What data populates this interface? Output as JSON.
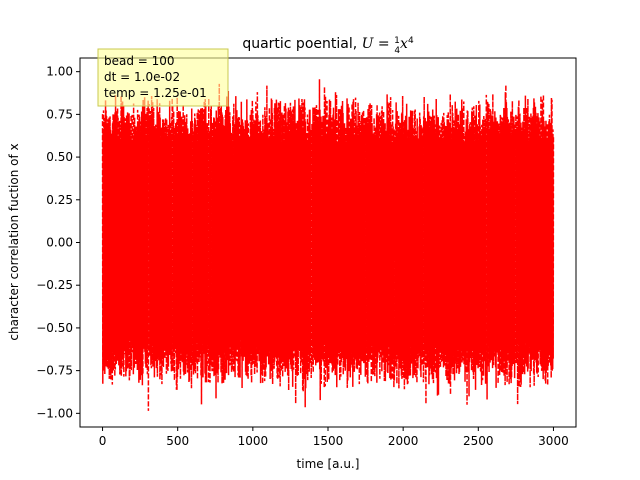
{
  "chart_data": {
    "type": "line",
    "title": "quartic poential, U = ¼x⁴",
    "title_parts": {
      "prefix": "quartic poential, ",
      "var": "U",
      "eq": " = ",
      "num": "1",
      "den": "4",
      "x": "x",
      "exp": "4"
    },
    "xlabel": "time [a.u.]",
    "ylabel": "character correlation fuction of x",
    "xlim": [
      -150,
      3150
    ],
    "ylim": [
      -1.08,
      1.08
    ],
    "x_ticks": [
      0,
      500,
      1000,
      1500,
      2000,
      2500,
      3000
    ],
    "x_tick_labels": [
      "0",
      "500",
      "1000",
      "1500",
      "2000",
      "2500",
      "3000"
    ],
    "y_ticks": [
      -1.0,
      -0.75,
      -0.5,
      -0.25,
      0.0,
      0.25,
      0.5,
      0.75,
      1.0
    ],
    "y_tick_labels": [
      "−1.00",
      "−0.75",
      "−0.50",
      "−0.25",
      "0.00",
      "0.25",
      "0.50",
      "0.75",
      "1.00"
    ],
    "grid": false,
    "series": [
      {
        "color": "#ff0000",
        "linestyle": "dashed",
        "x_range": [
          0,
          3000
        ],
        "amplitude_envelope": {
          "typical_max": 0.87,
          "typical_min": -0.87,
          "peak_max": 1.0,
          "peak_min": -1.0
        }
      }
    ],
    "annotation_box": {
      "lines": [
        "bead = 100",
        "dt = 1.0e-02",
        "temp = 1.25e-01"
      ],
      "background": "#ffff99",
      "position": "top-left"
    }
  }
}
